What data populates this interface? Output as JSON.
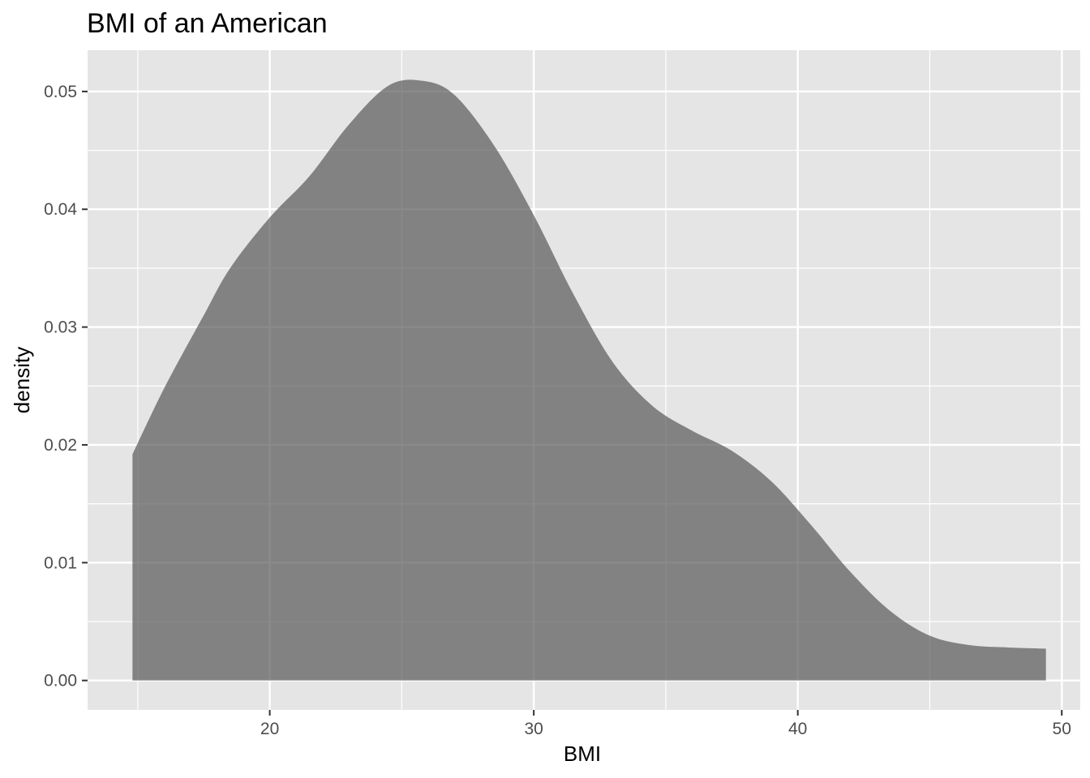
{
  "chart_data": {
    "type": "area",
    "title": "BMI of an American",
    "xlabel": "BMI",
    "ylabel": "density",
    "xlim": [
      13.1,
      50.7
    ],
    "ylim": [
      -0.0025,
      0.0535
    ],
    "x_ticks": [
      20,
      30,
      40,
      50
    ],
    "x_minor_ticks": [
      15,
      25,
      35,
      45
    ],
    "y_ticks": [
      0.0,
      0.01,
      0.02,
      0.03,
      0.04,
      0.05
    ],
    "y_tick_labels": [
      "0.00",
      "0.01",
      "0.02",
      "0.03",
      "0.04",
      "0.05"
    ],
    "y_minor_ticks": [
      0.005,
      0.015,
      0.025,
      0.035,
      0.045
    ],
    "grid": true,
    "legend": "none",
    "series": [
      {
        "x": [
          14.8,
          16.0,
          17.5,
          18.5,
          20.0,
          21.5,
          23.0,
          24.5,
          25.8,
          27.0,
          28.5,
          30.0,
          31.5,
          33.0,
          34.5,
          36.0,
          37.5,
          39.0,
          40.5,
          42.0,
          43.5,
          45.0,
          46.5,
          48.0,
          49.4
        ],
        "y": [
          0.0192,
          0.0248,
          0.031,
          0.035,
          0.0393,
          0.0428,
          0.0472,
          0.0505,
          0.0509,
          0.0497,
          0.0454,
          0.0395,
          0.0328,
          0.027,
          0.0233,
          0.0212,
          0.0195,
          0.0169,
          0.0132,
          0.0092,
          0.0059,
          0.0038,
          0.003,
          0.0028,
          0.0027
        ]
      }
    ],
    "colors": {
      "panel_background": "#e5e5e5",
      "grid": "#ffffff",
      "fill": "#595959",
      "fill_opacity": 0.7
    }
  }
}
